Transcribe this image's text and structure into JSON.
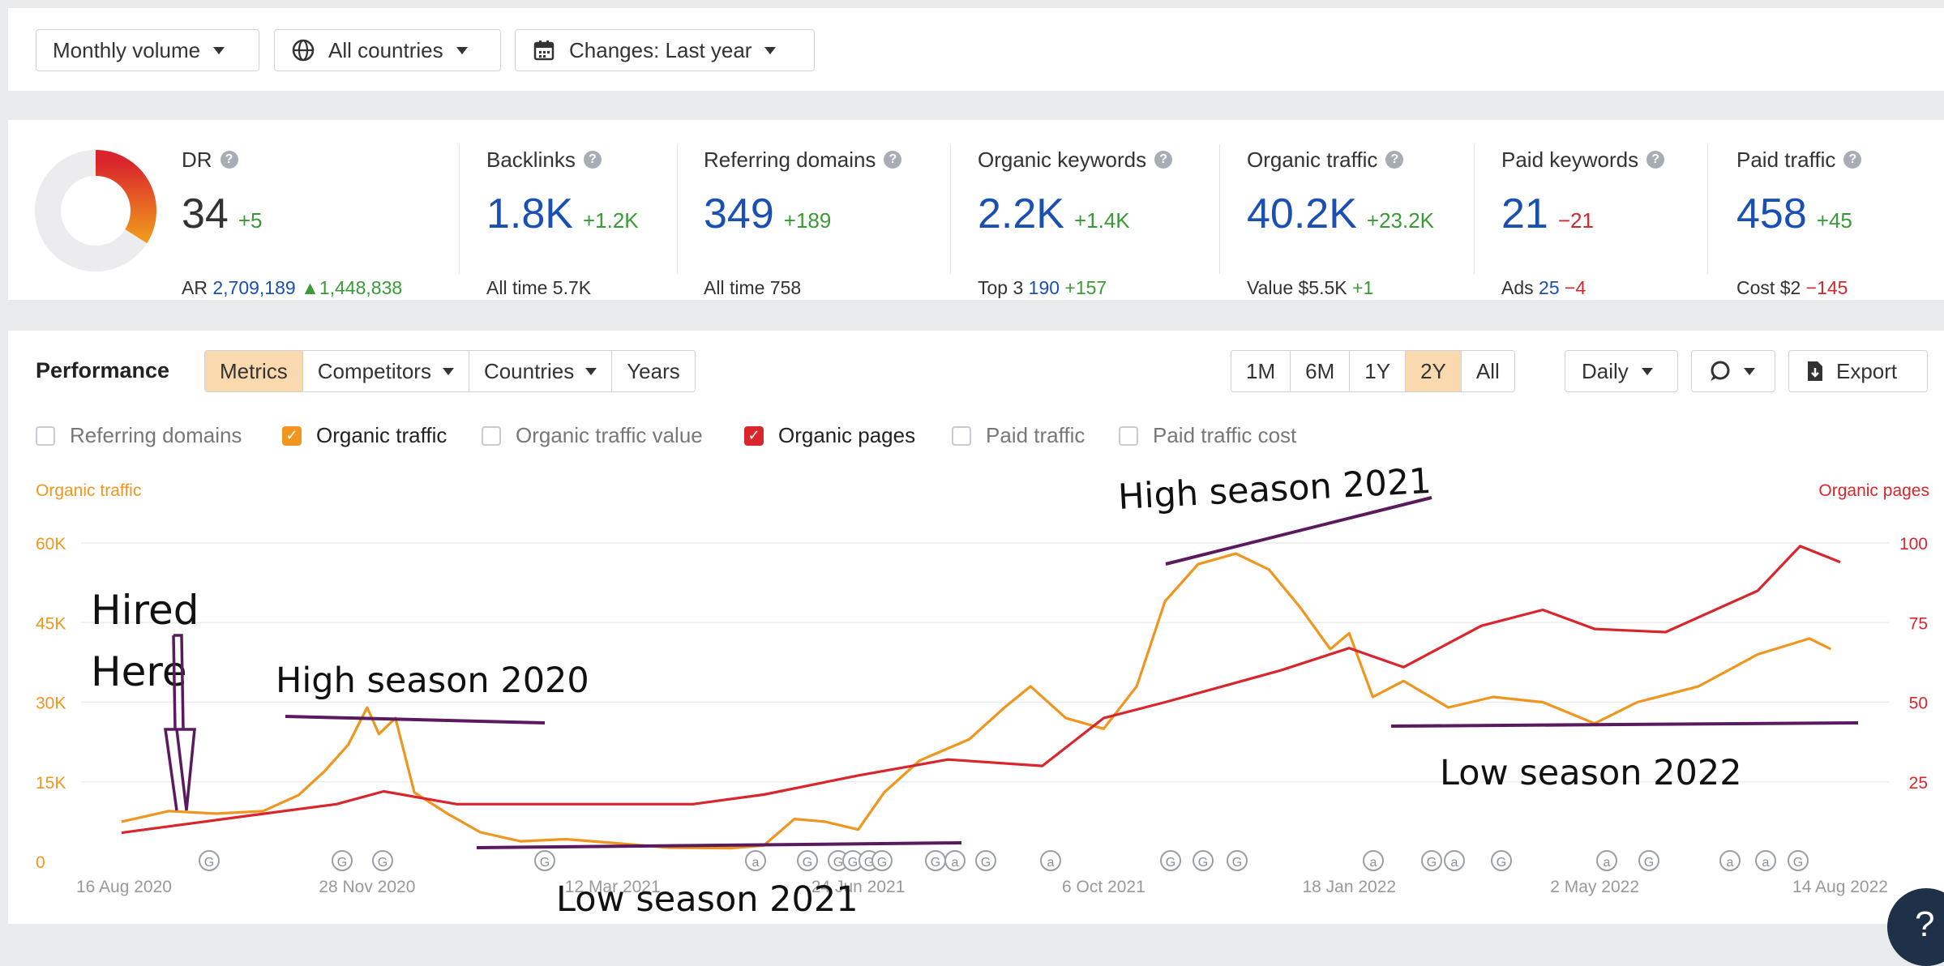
{
  "filters": {
    "volume": "Monthly volume",
    "countries": "All countries",
    "changes": "Changes: Last year"
  },
  "metrics": {
    "dr": {
      "label": "DR",
      "value": "34",
      "delta": "+5",
      "ar_label": "AR",
      "ar_value": "2,709,189",
      "ar_delta": "1,448,838",
      "ring_fraction": 0.34
    },
    "backlinks": {
      "label": "Backlinks",
      "value": "1.8K",
      "delta": "+1.2K",
      "sub_label": "All time",
      "sub_value": "5.7K"
    },
    "referring_domains": {
      "label": "Referring domains",
      "value": "349",
      "delta": "+189",
      "sub_label": "All time",
      "sub_value": "758"
    },
    "organic_keywords": {
      "label": "Organic keywords",
      "value": "2.2K",
      "delta": "+1.4K",
      "sub_label": "Top 3",
      "sub_value": "190",
      "sub_delta": "+157"
    },
    "organic_traffic": {
      "label": "Organic traffic",
      "value": "40.2K",
      "delta": "+23.2K",
      "sub_label": "Value",
      "sub_value": "$5.5K",
      "sub_delta": "+1"
    },
    "paid_keywords": {
      "label": "Paid keywords",
      "value": "21",
      "delta": "−21",
      "sub_label": "Ads",
      "sub_value": "25",
      "sub_delta": "−4"
    },
    "paid_traffic": {
      "label": "Paid traffic",
      "value": "458",
      "delta": "+45",
      "sub_label": "Cost",
      "sub_value": "$2",
      "sub_delta": "−145"
    }
  },
  "performance": {
    "title": "Performance",
    "tabs": [
      "Metrics",
      "Competitors",
      "Countries",
      "Years"
    ],
    "active_tab": "Metrics",
    "ranges": [
      "1M",
      "6M",
      "1Y",
      "2Y",
      "All"
    ],
    "active_range": "2Y",
    "granularity": "Daily",
    "export_label": "Export",
    "checkboxes": [
      {
        "label": "Referring domains",
        "checked": false
      },
      {
        "label": "Organic traffic",
        "checked": true,
        "color": "#f0961e"
      },
      {
        "label": "Organic traffic value",
        "checked": false
      },
      {
        "label": "Organic pages",
        "checked": true,
        "color": "#d9262c"
      },
      {
        "label": "Paid traffic",
        "checked": false
      },
      {
        "label": "Paid traffic cost",
        "checked": false
      }
    ]
  },
  "chart_data": {
    "type": "line",
    "left_axis_title": "Organic traffic",
    "right_axis_title": "Organic pages",
    "left_ticks": [
      "0",
      "15K",
      "30K",
      "45K",
      "60K"
    ],
    "right_ticks": [
      "0",
      "25",
      "50",
      "75",
      "100"
    ],
    "x_ticks": [
      "16 Aug 2020",
      "28 Nov 2020",
      "12 Mar 2021",
      "24 Jun 2021",
      "6 Oct 2021",
      "18 Jan 2022",
      "2 May 2022",
      "14 Aug 2022"
    ],
    "ylim_left": [
      0,
      60000
    ],
    "ylim_right": [
      0,
      100
    ],
    "grid": true,
    "series": [
      {
        "name": "Organic traffic",
        "axis": "left",
        "color": "#f0961e",
        "points": [
          [
            "16 Aug 2020",
            7500
          ],
          [
            "5 Sep 2020",
            9500
          ],
          [
            "25 Sep 2020",
            9000
          ],
          [
            "15 Oct 2020",
            9500
          ],
          [
            "30 Oct 2020",
            12500
          ],
          [
            "10 Nov 2020",
            17000
          ],
          [
            "20 Nov 2020",
            22000
          ],
          [
            "28 Nov 2020",
            29000
          ],
          [
            "3 Dec 2020",
            24000
          ],
          [
            "10 Dec 2020",
            27000
          ],
          [
            "18 Dec 2020",
            13000
          ],
          [
            "1 Jan 2021",
            9000
          ],
          [
            "15 Jan 2021",
            5500
          ],
          [
            "1 Feb 2021",
            3800
          ],
          [
            "20 Feb 2021",
            4200
          ],
          [
            "12 Mar 2021",
            3500
          ],
          [
            "5 Apr 2021",
            2600
          ],
          [
            "1 May 2021",
            2500
          ],
          [
            "15 May 2021",
            3000
          ],
          [
            "28 May 2021",
            8000
          ],
          [
            "10 Jun 2021",
            7500
          ],
          [
            "24 Jun 2021",
            6000
          ],
          [
            "5 Jul 2021",
            13000
          ],
          [
            "20 Jul 2021",
            19000
          ],
          [
            "10 Aug 2021",
            23000
          ],
          [
            "25 Aug 2021",
            29000
          ],
          [
            "5 Sep 2021",
            33000
          ],
          [
            "20 Sep 2021",
            27000
          ],
          [
            "6 Oct 2021",
            25000
          ],
          [
            "20 Oct 2021",
            33000
          ],
          [
            "1 Nov 2021",
            49000
          ],
          [
            "15 Nov 2021",
            56000
          ],
          [
            "1 Dec 2021",
            58000
          ],
          [
            "15 Dec 2021",
            55000
          ],
          [
            "28 Dec 2021",
            48000
          ],
          [
            "10 Jan 2022",
            40000
          ],
          [
            "18 Jan 2022",
            43000
          ],
          [
            "28 Jan 2022",
            31000
          ],
          [
            "10 Feb 2022",
            34000
          ],
          [
            "1 Mar 2022",
            29000
          ],
          [
            "20 Mar 2022",
            31000
          ],
          [
            "10 Apr 2022",
            30000
          ],
          [
            "2 May 2022",
            26000
          ],
          [
            "20 May 2022",
            30000
          ],
          [
            "15 Jun 2022",
            33000
          ],
          [
            "10 Jul 2022",
            39000
          ],
          [
            "1 Aug 2022",
            42000
          ],
          [
            "10 Aug 2022",
            40000
          ]
        ]
      },
      {
        "name": "Organic pages",
        "axis": "right",
        "color": "#d9262c",
        "points": [
          [
            "16 Aug 2020",
            9
          ],
          [
            "5 Oct 2020",
            14
          ],
          [
            "15 Nov 2020",
            18
          ],
          [
            "5 Dec 2020",
            22
          ],
          [
            "5 Jan 2021",
            18
          ],
          [
            "10 Feb 2021",
            18
          ],
          [
            "12 Mar 2021",
            18
          ],
          [
            "15 Apr 2021",
            18
          ],
          [
            "15 May 2021",
            21
          ],
          [
            "24 Jun 2021",
            27
          ],
          [
            "1 Aug 2021",
            32
          ],
          [
            "10 Sep 2021",
            30
          ],
          [
            "6 Oct 2021",
            45
          ],
          [
            "1 Nov 2021",
            50
          ],
          [
            "20 Dec 2021",
            60
          ],
          [
            "18 Jan 2022",
            67
          ],
          [
            "10 Feb 2022",
            61
          ],
          [
            "15 Mar 2022",
            74
          ],
          [
            "10 Apr 2022",
            79
          ],
          [
            "2 May 2022",
            73
          ],
          [
            "1 Jun 2022",
            72
          ],
          [
            "10 Jul 2022",
            85
          ],
          [
            "28 Jul 2022",
            99
          ],
          [
            "14 Aug 2022",
            94
          ]
        ]
      }
    ],
    "event_markers": [
      "G",
      "G",
      "G",
      "G",
      "a",
      "G",
      "G",
      "G",
      "G",
      "G",
      "G",
      "a",
      "G",
      "a",
      "G",
      "G",
      "G",
      "a",
      "G",
      "a",
      "G",
      "a",
      "G",
      "a",
      "a",
      "G"
    ]
  },
  "annotations": {
    "hired": "Hired\nHere",
    "high_2020": "High season 2020",
    "low_2021": "Low season 2021",
    "high_2021": "High season 2021",
    "low_2022": "Low season 2022"
  },
  "help_label": "?"
}
